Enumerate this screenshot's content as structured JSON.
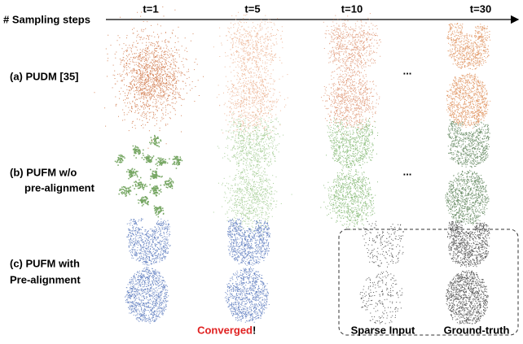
{
  "header": {
    "axis_label": "# Sampling steps",
    "steps": [
      "t=1",
      "t=5",
      "t=10",
      "t=30"
    ]
  },
  "rows": [
    {
      "label_lines": [
        "(a) PUDM [35]"
      ],
      "ellipsis": "..."
    },
    {
      "label_lines": [
        "(b) PUFM w/o",
        "pre-alignment"
      ],
      "ellipsis": "..."
    },
    {
      "label_lines": [
        "(c) PUFM with",
        "Pre-alignment"
      ]
    }
  ],
  "converged": {
    "word": "Converged",
    "mark": "!"
  },
  "inset": {
    "labels": [
      "Sparse Input",
      "Ground-truth"
    ]
  }
}
